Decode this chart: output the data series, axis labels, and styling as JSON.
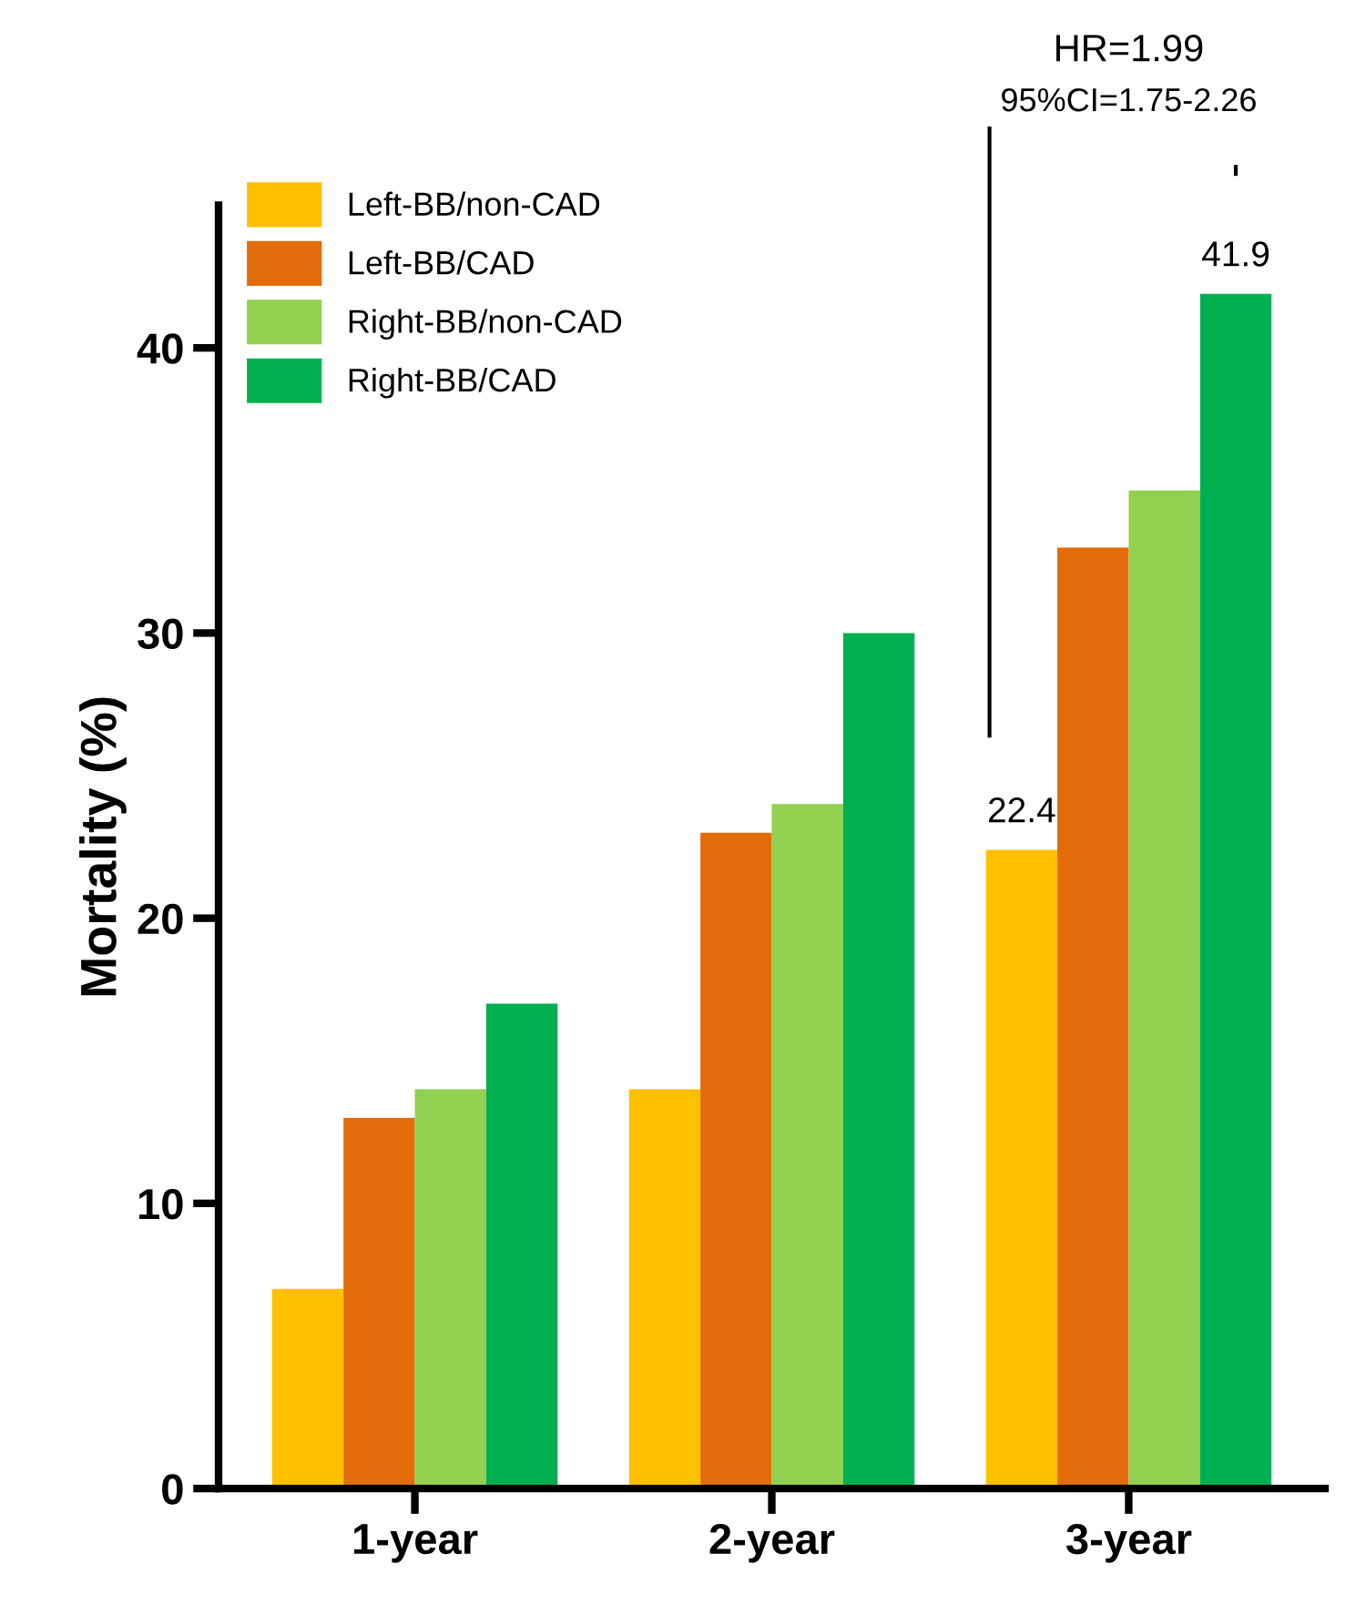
{
  "chart_data": {
    "type": "bar",
    "ylabel": "Mortality (%)",
    "categories": [
      "1-year",
      "2-year",
      "3-year"
    ],
    "series": [
      {
        "name": "Left-BB/non-CAD",
        "color": "#ffc000",
        "values": [
          7,
          14,
          22.4
        ],
        "value_labels": [
          null,
          null,
          "22.4"
        ]
      },
      {
        "name": "Left-BB/CAD",
        "color": "#e36c0a",
        "values": [
          13,
          23,
          33
        ]
      },
      {
        "name": "Right-BB/non-CAD",
        "color": "#92d050",
        "values": [
          14,
          24,
          35
        ]
      },
      {
        "name": "Right-BB/CAD",
        "color": "#00b050",
        "values": [
          17,
          30,
          41.9
        ],
        "value_labels": [
          null,
          null,
          "41.9"
        ]
      }
    ],
    "annotations": [
      "HR=1.99",
      "95%CI=1.75-2.26"
    ],
    "ylim": [
      0,
      45
    ],
    "yticks": [
      0,
      10,
      20,
      30,
      40
    ],
    "grid": false,
    "legend": "top left"
  }
}
